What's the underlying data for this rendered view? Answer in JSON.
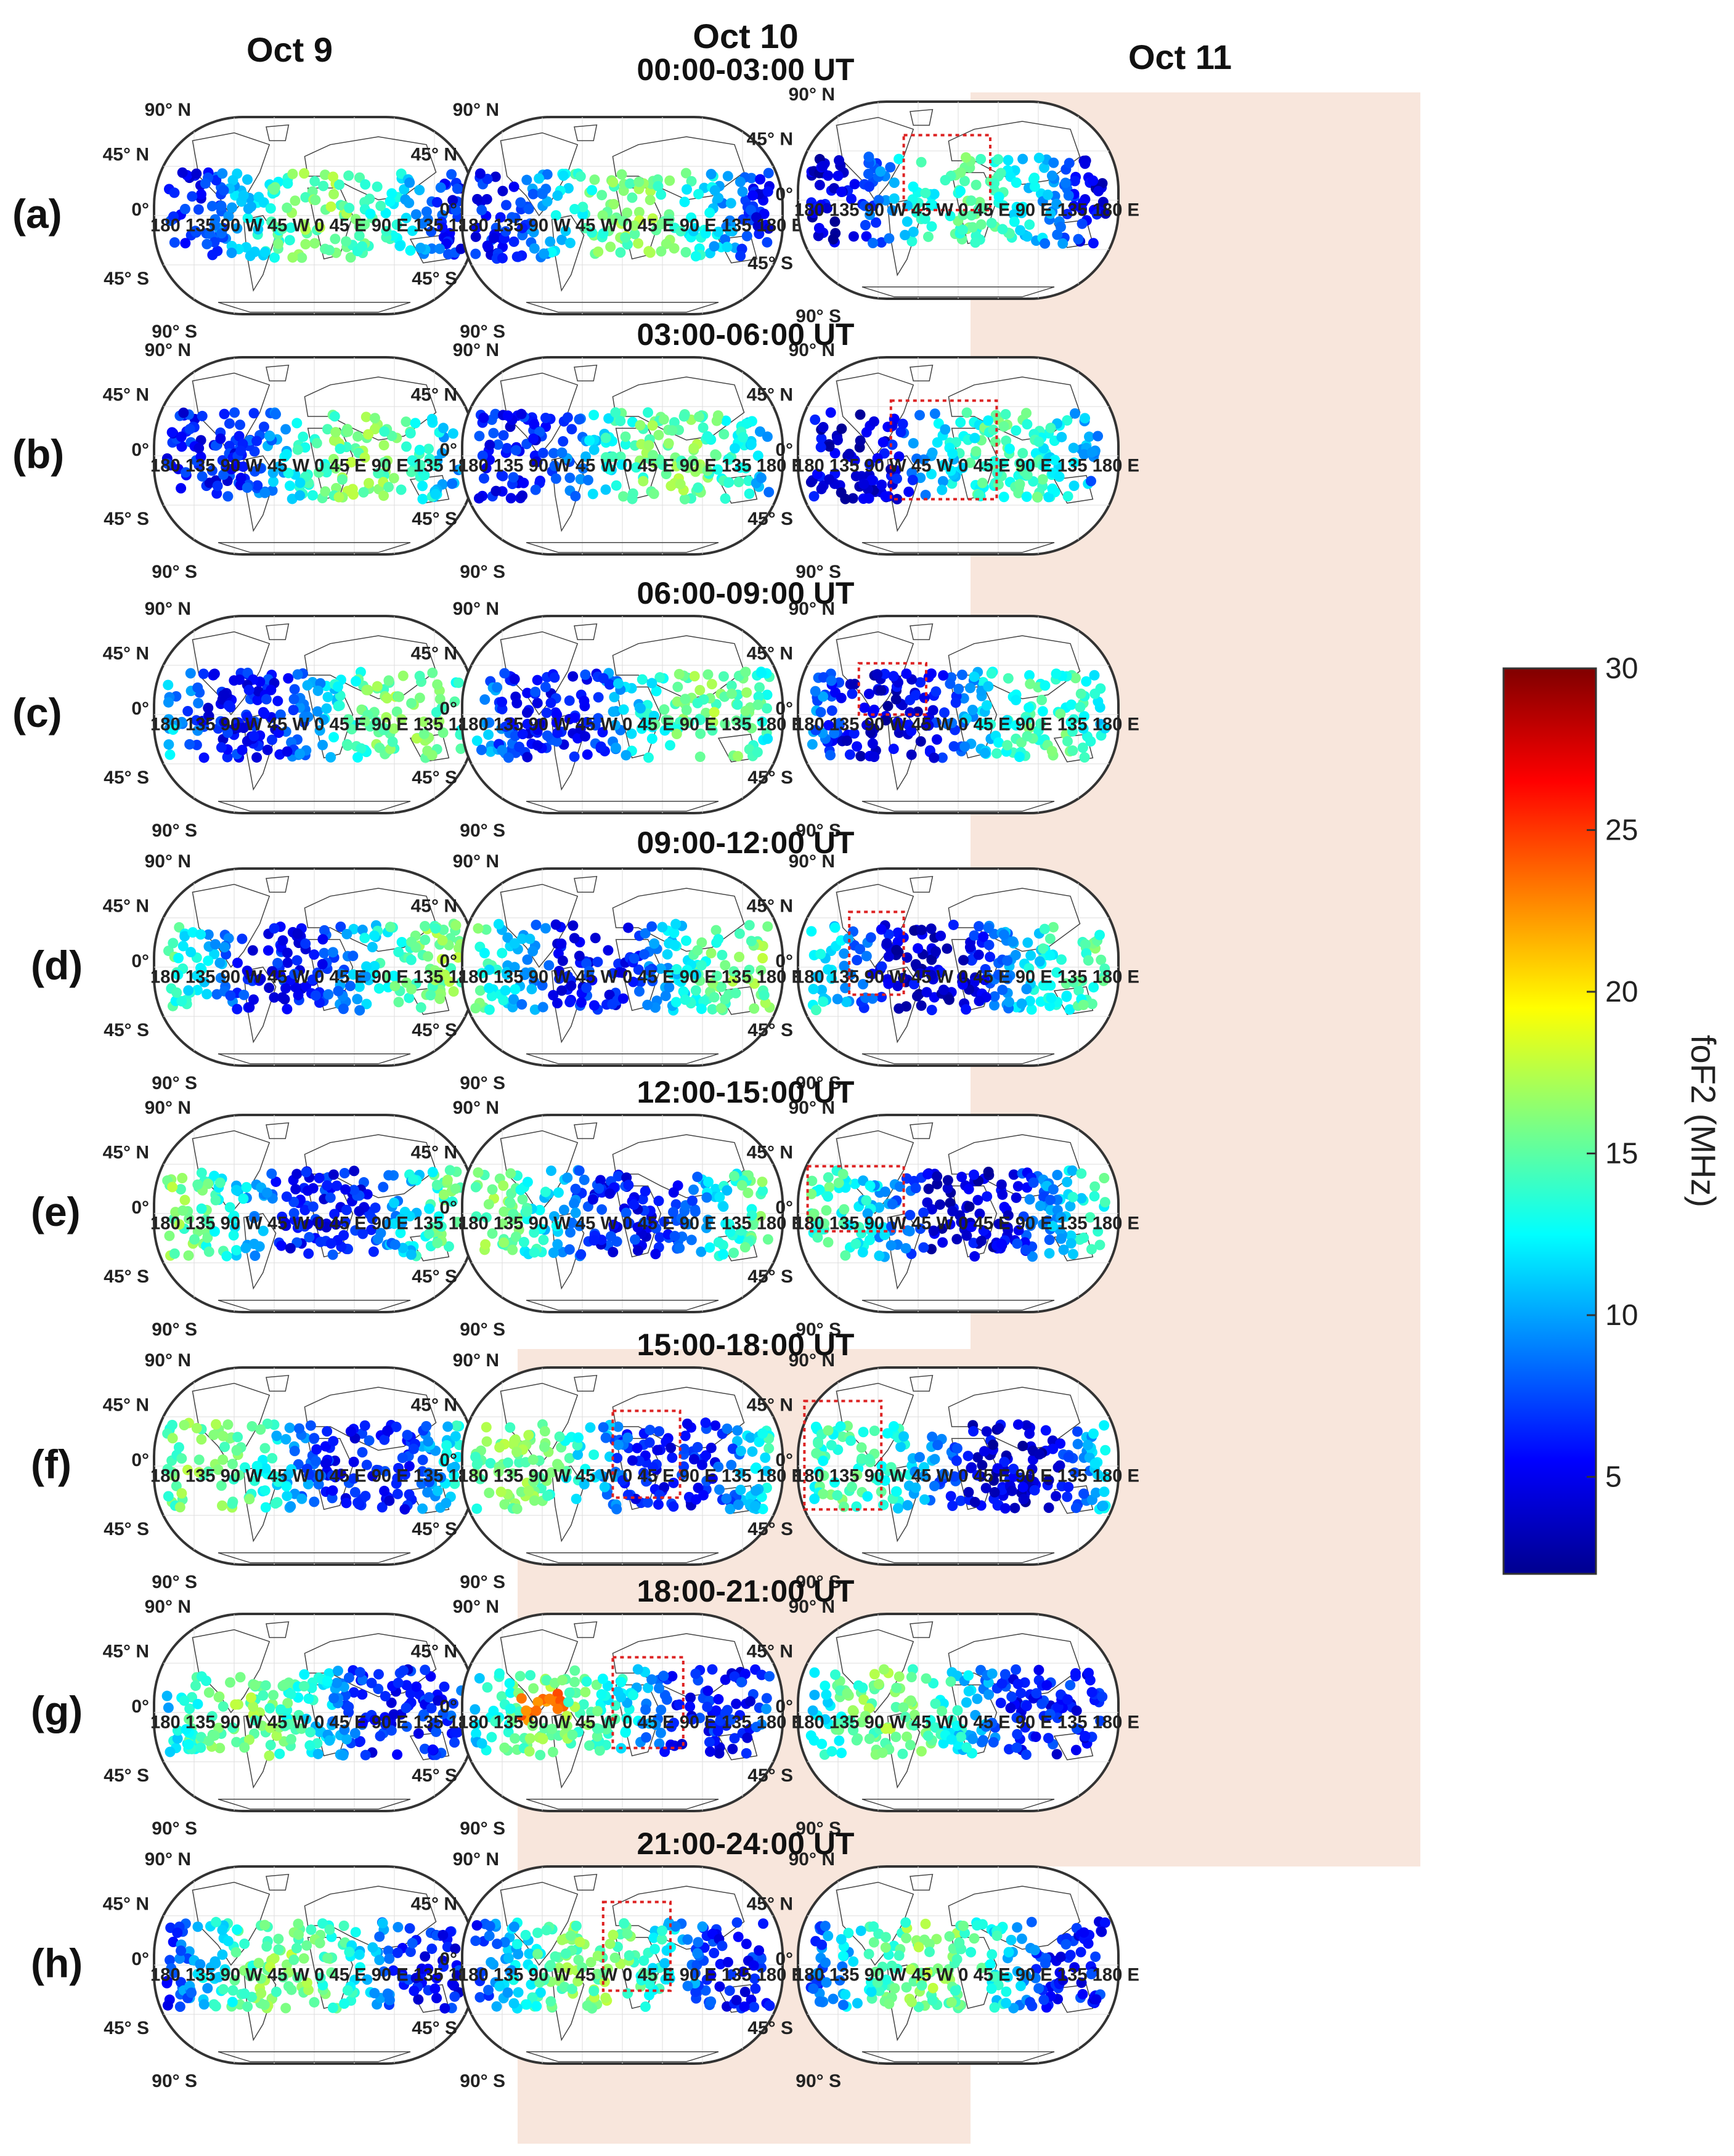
{
  "columns": [
    "Oct 9",
    "Oct 10",
    "Oct 11"
  ],
  "rows": [
    {
      "label": "(a)",
      "ut": "00:00-03:00 UT"
    },
    {
      "label": "(b)",
      "ut": "03:00-06:00 UT"
    },
    {
      "label": "(c)",
      "ut": "06:00-09:00 UT"
    },
    {
      "label": "(d)",
      "ut": "09:00-12:00 UT"
    },
    {
      "label": "(e)",
      "ut": "12:00-15:00 UT"
    },
    {
      "label": "(f)",
      "ut": "15:00-18:00 UT"
    },
    {
      "label": "(g)",
      "ut": "18:00-21:00 UT"
    },
    {
      "label": "(h)",
      "ut": "21:00-24:00 UT"
    }
  ],
  "map_labels": {
    "lat_90n": "90° N",
    "lat_45n": "45° N",
    "lat_0": "0°",
    "lat_45s": "45° S",
    "lat_90s": "90° S",
    "lon_axis": "180 135 90 W 45 W 0 45 E 90 E 135 180 E"
  },
  "colorbar": {
    "label": "foF2 (MHz)",
    "min": 2,
    "max": 30,
    "ticks": [
      5,
      10,
      15,
      20,
      25,
      30
    ],
    "colormap": "jet"
  },
  "highlight_color": "#f8e6dc",
  "box_color": "#dd2222",
  "chart_data": {
    "type": "scatter",
    "title": "",
    "quantity": "foF2 (MHz)",
    "colorbar_range": [
      2,
      30
    ],
    "panels": [
      {
        "row": "(a)",
        "column": "Oct 9",
        "ut": "00:00-03:00 UT",
        "highlighted": false,
        "red_box": false,
        "typical_foF2": "10-17 MHz over Americas/Pacific, 5-9 MHz over Africa/Asia"
      },
      {
        "row": "(a)",
        "column": "Oct 10",
        "ut": "00:00-03:00 UT",
        "highlighted": false,
        "red_box": false,
        "typical_foF2": "8-17 MHz"
      },
      {
        "row": "(a)",
        "column": "Oct 11",
        "ut": "00:00-03:00 UT",
        "highlighted": true,
        "red_box": true,
        "typical_foF2": "5-14 MHz"
      },
      {
        "row": "(b)",
        "column": "Oct 9",
        "ut": "03:00-06:00 UT",
        "highlighted": false,
        "red_box": false,
        "typical_foF2": "5-17 MHz"
      },
      {
        "row": "(b)",
        "column": "Oct 10",
        "ut": "03:00-06:00 UT",
        "highlighted": false,
        "red_box": false,
        "typical_foF2": "5-16 MHz"
      },
      {
        "row": "(b)",
        "column": "Oct 11",
        "ut": "03:00-06:00 UT",
        "highlighted": true,
        "red_box": true,
        "typical_foF2": "7-16 MHz"
      },
      {
        "row": "(c)",
        "column": "Oct 9",
        "ut": "06:00-09:00 UT",
        "highlighted": false,
        "red_box": false,
        "typical_foF2": "5-18 MHz"
      },
      {
        "row": "(c)",
        "column": "Oct 10",
        "ut": "06:00-09:00 UT",
        "highlighted": false,
        "red_box": false,
        "typical_foF2": "5-17 MHz"
      },
      {
        "row": "(c)",
        "column": "Oct 11",
        "ut": "06:00-09:00 UT",
        "highlighted": true,
        "red_box": true,
        "typical_foF2": "7-16 MHz"
      },
      {
        "row": "(d)",
        "column": "Oct 9",
        "ut": "09:00-12:00 UT",
        "highlighted": false,
        "red_box": false,
        "typical_foF2": "5-18 MHz"
      },
      {
        "row": "(d)",
        "column": "Oct 10",
        "ut": "09:00-12:00 UT",
        "highlighted": false,
        "red_box": false,
        "typical_foF2": "4-17 MHz"
      },
      {
        "row": "(d)",
        "column": "Oct 11",
        "ut": "09:00-12:00 UT",
        "highlighted": true,
        "red_box": true,
        "typical_foF2": "5-15 MHz"
      },
      {
        "row": "(e)",
        "column": "Oct 9",
        "ut": "12:00-15:00 UT",
        "highlighted": false,
        "red_box": false,
        "typical_foF2": "5-19 MHz"
      },
      {
        "row": "(e)",
        "column": "Oct 10",
        "ut": "12:00-15:00 UT",
        "highlighted": false,
        "red_box": false,
        "typical_foF2": "4-18 MHz"
      },
      {
        "row": "(e)",
        "column": "Oct 11",
        "ut": "12:00-15:00 UT",
        "highlighted": true,
        "red_box": true,
        "typical_foF2": "5-15 MHz"
      },
      {
        "row": "(f)",
        "column": "Oct 9",
        "ut": "15:00-18:00 UT",
        "highlighted": false,
        "red_box": false,
        "typical_foF2": "5-18 MHz"
      },
      {
        "row": "(f)",
        "column": "Oct 10",
        "ut": "15:00-18:00 UT",
        "highlighted": true,
        "red_box": true,
        "typical_foF2": "5-16 MHz"
      },
      {
        "row": "(f)",
        "column": "Oct 11",
        "ut": "15:00-18:00 UT",
        "highlighted": true,
        "red_box": true,
        "typical_foF2": "4-17 MHz"
      },
      {
        "row": "(g)",
        "column": "Oct 9",
        "ut": "18:00-21:00 UT",
        "highlighted": false,
        "red_box": false,
        "typical_foF2": "5-19 MHz"
      },
      {
        "row": "(g)",
        "column": "Oct 10",
        "ut": "18:00-21:00 UT",
        "highlighted": true,
        "red_box": true,
        "typical_foF2": "4-25 MHz (max ~25 MHz over Americas)"
      },
      {
        "row": "(g)",
        "column": "Oct 11",
        "ut": "18:00-21:00 UT",
        "highlighted": true,
        "red_box": false,
        "typical_foF2": "4-22 MHz"
      },
      {
        "row": "(h)",
        "column": "Oct 9",
        "ut": "21:00-24:00 UT",
        "highlighted": false,
        "red_box": false,
        "typical_foF2": "4-19 MHz"
      },
      {
        "row": "(h)",
        "column": "Oct 10",
        "ut": "21:00-24:00 UT",
        "highlighted": true,
        "red_box": true,
        "typical_foF2": "5-16 MHz"
      },
      {
        "row": "(h)",
        "column": "Oct 11",
        "ut": "21:00-24:00 UT",
        "highlighted": false,
        "red_box": false,
        "typical_foF2": "4-20 MHz"
      }
    ]
  }
}
